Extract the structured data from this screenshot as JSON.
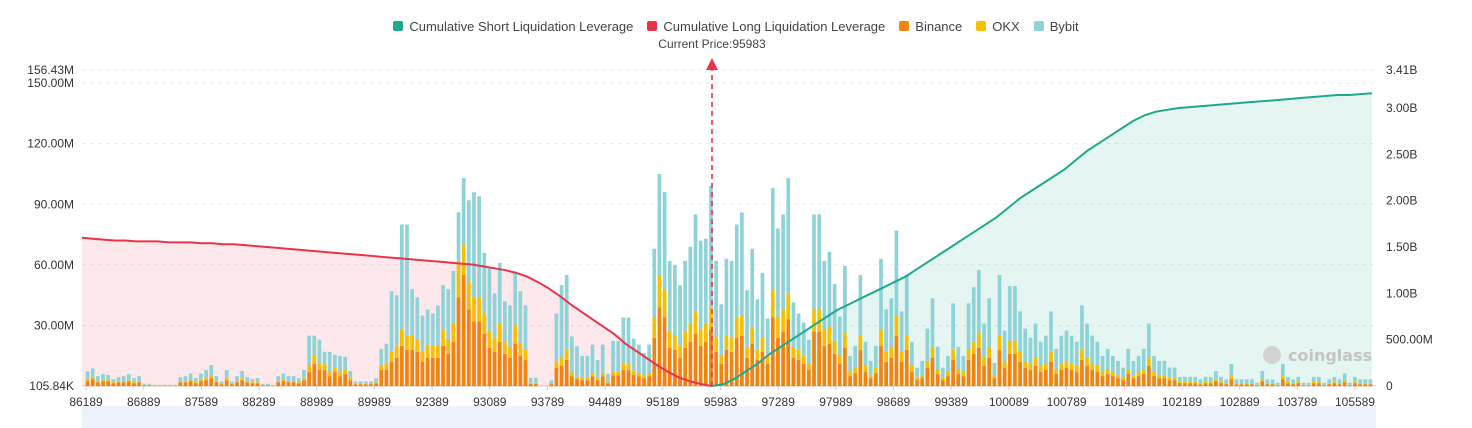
{
  "legend": [
    {
      "name": "Cumulative Short Liquidation Leverage",
      "color": "#1fa88e"
    },
    {
      "name": "Cumulative Long Liquidation Leverage",
      "color": "#e8344a"
    },
    {
      "name": "Binance",
      "color": "#f0840f"
    },
    {
      "name": "OKX",
      "color": "#f6c000"
    },
    {
      "name": "Bybit",
      "color": "#8fd3d8"
    }
  ],
  "watermark": "coinglass",
  "chart_data": {
    "type": "bar",
    "title": "",
    "current_price_label": "Current Price:95983",
    "current_price": 95983,
    "x_tick_labels": [
      "86189",
      "86889",
      "87589",
      "88289",
      "88989",
      "89989",
      "92389",
      "93089",
      "93789",
      "94489",
      "95189",
      "95983",
      "97289",
      "97989",
      "98689",
      "99389",
      "100089",
      "100789",
      "101489",
      "102189",
      "102889",
      "103789",
      "105589"
    ],
    "y_left": {
      "min": 105840,
      "max": 156430000,
      "tick_labels": [
        "105.84K",
        "30.00M",
        "60.00M",
        "90.00M",
        "120.00M",
        "150.00M",
        "156.43M"
      ],
      "tick_values": [
        105840,
        30000000,
        60000000,
        90000000,
        120000000,
        150000000,
        156430000
      ]
    },
    "y_right": {
      "min": 0,
      "max": 3410000000,
      "tick_labels": [
        "0",
        "500.00M",
        "1.00B",
        "1.50B",
        "2.00B",
        "2.50B",
        "3.00B",
        "3.41B"
      ],
      "tick_values": [
        0,
        500000000,
        1000000000,
        1500000000,
        2000000000,
        2500000000,
        3000000000,
        3410000000
      ]
    },
    "bars_in_millions": {
      "binance": [
        2.5,
        3.5,
        2.0,
        2.5,
        2.5,
        1.5,
        2.0,
        2.0,
        2.5,
        1.5,
        2.0,
        0.5,
        0.5,
        0.3,
        0.3,
        0.3,
        0.3,
        0.3,
        2.0,
        2.0,
        2.5,
        1.5,
        2.5,
        3.0,
        4.0,
        2.0,
        1.0,
        3.0,
        1.0,
        2.0,
        3.0,
        2.0,
        1.5,
        1.5,
        0.5,
        0.5,
        0.3,
        2.0,
        2.5,
        2.0,
        2.0,
        1.5,
        3.0,
        7.0,
        11.0,
        8.0,
        8.0,
        5.0,
        7.0,
        5.0,
        6.0,
        3.0,
        1.0,
        1.0,
        1.0,
        1.0,
        1.5,
        8.0,
        8.0,
        12.0,
        14.0,
        20.0,
        18.0,
        18.0,
        17.0,
        12.0,
        14.0,
        14.0,
        14.0,
        20.0,
        16.0,
        22.0,
        44.0,
        55.0,
        38.0,
        32.0,
        32.0,
        26.0,
        19.0,
        17.0,
        22.0,
        16.0,
        14.0,
        21.0,
        15.0,
        13.0,
        1.2,
        1.2,
        0.0,
        0.0,
        1.0,
        9.0,
        10.0,
        13.0,
        4.8,
        3.5,
        3.0,
        3.0,
        4.8,
        3.0,
        4.8,
        1.5,
        5.4,
        5.4,
        8.0,
        8.0,
        5.6,
        4.8,
        4.0,
        4.8,
        24.0,
        39.0,
        34.0,
        19.0,
        18.0,
        14.0,
        19.0,
        22.0,
        26.0,
        20.0,
        22.0,
        28.0,
        17.0,
        11.0,
        18.0,
        17.0,
        24.0,
        25.0,
        14.0,
        21.0,
        13.0,
        17.0,
        11.0,
        34.0,
        24.0,
        27.0,
        33.0,
        14.0,
        13.0,
        11.0,
        8.0,
        27.0,
        27.0,
        20.0,
        21.0,
        16.0,
        11.0,
        19.0,
        5.0,
        6.5,
        18.0,
        7.0,
        4.0,
        6.5,
        20.0,
        12.0,
        14.0,
        25.0,
        12.0,
        18.0,
        7.0,
        3.0,
        4.0,
        9.0,
        14.0,
        6.0,
        3.0,
        5.0,
        13.0,
        6.0,
        5.0,
        13.0,
        16.0,
        19.0,
        10.0,
        14.0,
        4.0,
        18.0,
        9.0,
        16.0,
        16.0,
        12.0,
        9.0,
        8.0,
        10.0,
        7.0,
        8.0,
        12.0,
        6.0,
        8.0,
        9.0,
        8.0,
        7.0,
        13.0,
        10.0,
        8.0,
        7.0,
        5.0,
        6.0,
        5.0,
        4.0,
        3.0,
        6.0,
        4.0,
        5.0,
        6.0,
        10.0,
        5.0,
        4.0,
        4.0,
        3.0,
        3.0,
        1.5,
        1.5,
        1.5,
        1.5,
        1.0,
        1.5,
        1.5,
        2.5,
        1.5,
        1.0,
        3.5,
        1.0,
        1.0,
        1.0,
        1.0,
        0.5,
        2.5,
        1.0,
        1.0,
        0.5,
        3.5,
        1.5,
        1.0,
        1.5,
        0.5,
        0.5,
        1.5,
        1.5,
        0.5,
        1.0,
        1.5,
        1.0,
        2.0,
        0.5,
        1.5,
        1.0,
        1.0,
        1.0
      ],
      "okx": [
        0.8,
        0.8,
        0.5,
        0.5,
        0.5,
        0.5,
        0.5,
        0.5,
        0.5,
        0.5,
        0.5,
        0.2,
        0.2,
        0.1,
        0.1,
        0.1,
        0.1,
        0.1,
        0.5,
        0.5,
        0.8,
        0.5,
        0.8,
        1.0,
        1.5,
        0.5,
        0.3,
        1.0,
        0.3,
        0.5,
        1.0,
        0.5,
        0.5,
        0.5,
        0.2,
        0.2,
        0.1,
        0.5,
        0.8,
        0.5,
        0.5,
        0.5,
        1.0,
        3.0,
        4.0,
        3.0,
        3.0,
        2.0,
        2.5,
        2.0,
        2.5,
        1.0,
        0.4,
        0.4,
        0.4,
        0.4,
        0.5,
        2.5,
        3.0,
        5.0,
        6.0,
        8.0,
        7.0,
        7.0,
        6.0,
        5.0,
        6.0,
        6.0,
        6.0,
        8.0,
        7.0,
        9.0,
        18.0,
        15.0,
        14.0,
        12.0,
        12.0,
        10.0,
        8.0,
        7.0,
        9.0,
        6.0,
        5.0,
        9.0,
        6.0,
        5.0,
        0.5,
        0.5,
        0.0,
        0.0,
        0.4,
        3.0,
        4.0,
        5.0,
        1.8,
        1.2,
        1.0,
        1.0,
        1.8,
        1.0,
        1.8,
        0.5,
        2.0,
        2.0,
        3.0,
        3.0,
        2.0,
        1.8,
        1.5,
        1.8,
        10.0,
        16.0,
        14.0,
        8.0,
        7.0,
        6.0,
        8.0,
        9.0,
        11.0,
        8.0,
        9.0,
        11.0,
        7.0,
        4.5,
        7.0,
        7.0,
        10.0,
        10.0,
        5.5,
        8.0,
        5.0,
        7.0,
        4.5,
        14.0,
        10.0,
        11.0,
        13.0,
        5.5,
        5.0,
        4.5,
        3.0,
        11.0,
        11.0,
        8.0,
        8.5,
        6.5,
        4.5,
        7.5,
        2.0,
        2.5,
        7.0,
        3.0,
        1.5,
        2.5,
        8.0,
        5.0,
        5.5,
        10.0,
        5.0,
        7.0,
        3.0,
        1.2,
        1.5,
        3.5,
        5.5,
        2.5,
        1.2,
        2.0,
        5.0,
        2.5,
        2.0,
        5.0,
        6.0,
        7.5,
        4.0,
        5.5,
        1.5,
        7.0,
        3.5,
        6.5,
        6.5,
        5.0,
        3.5,
        3.0,
        4.0,
        3.0,
        3.0,
        5.0,
        2.5,
        3.0,
        3.5,
        3.0,
        3.0,
        5.0,
        4.0,
        3.0,
        3.0,
        2.0,
        2.5,
        2.0,
        1.5,
        1.2,
        2.5,
        1.5,
        2.0,
        2.5,
        4.0,
        2.0,
        1.5,
        1.5,
        1.2,
        1.2,
        0.6,
        0.6,
        0.6,
        0.6,
        0.4,
        0.6,
        0.6,
        1.0,
        0.6,
        0.4,
        1.5,
        0.4,
        0.4,
        0.4,
        0.4,
        0.2,
        1.0,
        0.4,
        0.4,
        0.2,
        1.5,
        0.6,
        0.4,
        0.6,
        0.2,
        0.2,
        0.6,
        0.6,
        0.2,
        0.4,
        0.6,
        0.4,
        0.8,
        0.2,
        0.6,
        0.4,
        0.4,
        0.4
      ],
      "bybit": [
        4.0,
        4.5,
        2.5,
        3.0,
        2.5,
        1.5,
        2.0,
        2.5,
        3.0,
        2.0,
        2.5,
        0.5,
        0.5,
        0.3,
        0.3,
        0.3,
        0.3,
        0.3,
        2.0,
        2.5,
        3.0,
        2.0,
        3.0,
        4.0,
        5.0,
        2.5,
        1.0,
        4.0,
        1.0,
        2.5,
        3.5,
        2.0,
        1.5,
        2.0,
        0.5,
        0.5,
        0.3,
        2.5,
        3.0,
        2.5,
        2.5,
        2.0,
        4.0,
        15.0,
        10.0,
        12.0,
        6.0,
        10.0,
        6.0,
        8.0,
        6.0,
        3.5,
        1.0,
        1.0,
        1.0,
        1.0,
        2.0,
        8.0,
        10.0,
        30.0,
        25.0,
        52.0,
        55.0,
        23.0,
        21.0,
        18.0,
        18.0,
        16.0,
        20.0,
        22.0,
        25.0,
        26.0,
        24.0,
        33.0,
        40.0,
        52.0,
        50.0,
        30.0,
        32.0,
        22.0,
        30.0,
        20.0,
        21.0,
        26.0,
        26.0,
        22.0,
        2.5,
        2.5,
        0.0,
        0.0,
        1.5,
        24.0,
        36.0,
        37.0,
        18.0,
        15.0,
        11.0,
        11.0,
        14.0,
        9.0,
        14.0,
        4.0,
        15.0,
        15.0,
        23.0,
        23.0,
        16.0,
        14.0,
        11.0,
        14.0,
        34.0,
        50.0,
        48.0,
        35.0,
        35.0,
        30.0,
        35.0,
        38.0,
        48.0,
        44.0,
        42.0,
        60.0,
        38.0,
        25.0,
        38.0,
        38.0,
        46.0,
        51.0,
        28.0,
        39.0,
        25.0,
        32.0,
        18.0,
        50.0,
        44.0,
        47.0,
        57.0,
        22.0,
        18.0,
        16.0,
        12.0,
        47.0,
        47.0,
        34.0,
        37.0,
        28.0,
        19.0,
        33.0,
        8.0,
        11.0,
        30.0,
        12.0,
        7.0,
        11.0,
        35.0,
        21.0,
        24.0,
        42.0,
        20.0,
        30.0,
        12.0,
        5.0,
        7.0,
        16.0,
        24.0,
        11.0,
        5.0,
        8.0,
        23.0,
        11.0,
        8.0,
        23.0,
        27.0,
        31.0,
        17.0,
        24.0,
        6.0,
        30.0,
        15.0,
        27.0,
        27.0,
        20.0,
        16.0,
        13.0,
        17.0,
        12.0,
        14.0,
        20.0,
        10.0,
        14.0,
        15.0,
        14.0,
        12.0,
        22.0,
        17.0,
        14.0,
        12.0,
        8.0,
        10.0,
        8.0,
        7.0,
        5.0,
        10.0,
        7.0,
        8.0,
        10.0,
        17.0,
        8.0,
        7.0,
        7.0,
        5.0,
        5.0,
        2.5,
        2.5,
        2.5,
        2.5,
        2.0,
        2.5,
        2.5,
        4.0,
        2.5,
        2.0,
        6.0,
        2.0,
        2.0,
        2.0,
        2.0,
        1.0,
        4.0,
        2.0,
        2.0,
        1.0,
        6.0,
        2.5,
        2.0,
        2.5,
        1.0,
        1.0,
        2.5,
        2.5,
        1.0,
        2.0,
        2.5,
        2.0,
        3.5,
        1.0,
        2.5,
        2.0,
        2.0,
        2.0
      ]
    },
    "cumulative_long_B": [
      1.6,
      1.59,
      1.58,
      1.57,
      1.57,
      1.56,
      1.56,
      1.56,
      1.55,
      1.55,
      1.55,
      1.54,
      1.54,
      1.53,
      1.53,
      1.52,
      1.51,
      1.5,
      1.49,
      1.48,
      1.47,
      1.46,
      1.45,
      1.44,
      1.43,
      1.42,
      1.41,
      1.4,
      1.39,
      1.38,
      1.37,
      1.36,
      1.35,
      1.34,
      1.33,
      1.32,
      1.31,
      1.29,
      1.27,
      1.25,
      1.22,
      1.18,
      1.12,
      1.05,
      0.97,
      0.88,
      0.8,
      0.72,
      0.64,
      0.56,
      0.46,
      0.38,
      0.3,
      0.22,
      0.15,
      0.09,
      0.05,
      0.02,
      0.0
    ],
    "cumulative_short_B": [
      0.0,
      0.02,
      0.08,
      0.16,
      0.24,
      0.34,
      0.42,
      0.5,
      0.58,
      0.66,
      0.74,
      0.82,
      0.88,
      0.94,
      1.0,
      1.06,
      1.12,
      1.18,
      1.26,
      1.34,
      1.42,
      1.5,
      1.58,
      1.66,
      1.74,
      1.82,
      1.92,
      2.02,
      2.1,
      2.18,
      2.26,
      2.34,
      2.44,
      2.54,
      2.62,
      2.7,
      2.78,
      2.86,
      2.92,
      2.96,
      2.98,
      3.0,
      3.01,
      3.02,
      3.03,
      3.04,
      3.05,
      3.06,
      3.07,
      3.08,
      3.09,
      3.1,
      3.11,
      3.12,
      3.13,
      3.14,
      3.14,
      3.15,
      3.16
    ]
  }
}
